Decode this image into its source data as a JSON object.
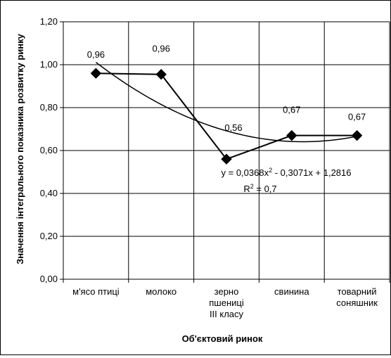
{
  "chart_data": {
    "type": "line",
    "categories": [
      "м'ясо птиці",
      "молоко",
      "зерно пшениці III класу",
      "свинина",
      "товарний соняшник"
    ],
    "category_label_lines": [
      [
        "м'ясо птиці"
      ],
      [
        "молоко"
      ],
      [
        "зерно",
        "пшениці",
        "III класу"
      ],
      [
        "свинина"
      ],
      [
        "товарний",
        "соняшник"
      ]
    ],
    "series": [
      {
        "values": [
          0.96,
          0.955,
          0.56,
          0.67,
          0.67
        ]
      }
    ],
    "data_labels": [
      "0,96",
      "0,96",
      "0,56",
      "0,67",
      "0,67"
    ],
    "trendline": {
      "type": "polynomial",
      "order": 2,
      "coefficients": [
        0.0368,
        -0.3071,
        1.2816
      ],
      "r_squared": 0.7,
      "equation_label": "y = 0,0368x² - 0,3071x + 1,2816",
      "r2_label": "R² = 0,7"
    },
    "xlabel": "Об'єктовий ринок",
    "ylabel": "Значення інтегрального показника розвитку ринку",
    "ylim": [
      0,
      1.2
    ],
    "yticks": [
      "0,00",
      "0,20",
      "0,40",
      "0,60",
      "0,80",
      "1,00",
      "1,20"
    ],
    "grid": true,
    "legend": "none",
    "colors": {
      "series": "#000000",
      "grid": "#000000",
      "background": "#ffffff"
    }
  }
}
